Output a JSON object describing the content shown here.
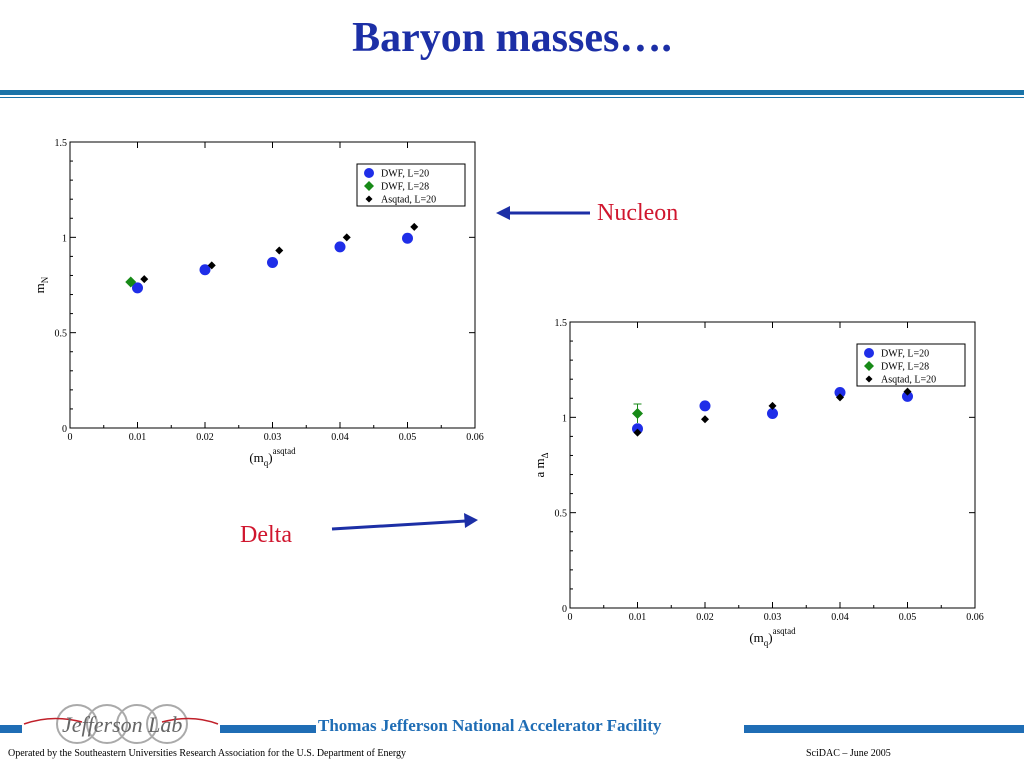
{
  "title": "Baryon masses….",
  "callouts": {
    "nucleon": "Nucleon",
    "delta": "Delta"
  },
  "footer": {
    "facility": "Thomas Jefferson National Accelerator Facility",
    "operated_by": "Operated by the Southeastern Universities Research Association for the U.S. Department of  Energy",
    "event": "SciDAC – June  2005",
    "logo_text": "Jefferson Lab"
  },
  "colors": {
    "title": "#1c2fa6",
    "callout": "#d0162e",
    "footer": "#1f6db5",
    "dwf20": "#1f2ee8",
    "dwf28": "#178a17",
    "asqtad": "#000000"
  },
  "chart_data": [
    {
      "type": "scatter",
      "title": "",
      "xlabel": "(m",
      "xlabel_sub": "q",
      "xlabel_tail": ")",
      "xlabel_sup": "asqtad",
      "ylabel": "m",
      "ylabel_sub": "N",
      "xlim": [
        0,
        0.06
      ],
      "ylim": [
        0,
        1.5
      ],
      "xticks": [
        "0",
        "0.01",
        "0.02",
        "0.03",
        "0.04",
        "0.05",
        "0.06"
      ],
      "yticks": [
        "0",
        "0.5",
        "1",
        "1.5"
      ],
      "legend": "top-right",
      "series": [
        {
          "name": "DWF, L=20",
          "marker": "circle",
          "x": [
            0.01,
            0.02,
            0.03,
            0.04,
            0.05
          ],
          "y": [
            0.735,
            0.83,
            0.868,
            0.95,
            0.995
          ]
        },
        {
          "name": "DWF, L=28",
          "marker": "diamond",
          "x": [
            0.009
          ],
          "y": [
            0.766
          ]
        },
        {
          "name": "Asqtad, L=20",
          "marker": "diamond-small",
          "x": [
            0.011,
            0.021,
            0.031,
            0.041,
            0.051
          ],
          "y": [
            0.781,
            0.853,
            0.931,
            1.0,
            1.055
          ]
        }
      ]
    },
    {
      "type": "scatter",
      "title": "",
      "xlabel": "(m",
      "xlabel_sub": "q",
      "xlabel_tail": ")",
      "xlabel_sup": "asqtad",
      "ylabel": "a m",
      "ylabel_sub": "Δ",
      "xlim": [
        0,
        0.06
      ],
      "ylim": [
        0,
        1.5
      ],
      "xticks": [
        "0",
        "0.01",
        "0.02",
        "0.03",
        "0.04",
        "0.05",
        "0.06"
      ],
      "yticks": [
        "0",
        "0.5",
        "1",
        "1.5"
      ],
      "legend": "top-right",
      "series": [
        {
          "name": "DWF, L=20",
          "marker": "circle",
          "x": [
            0.01,
            0.02,
            0.03,
            0.04,
            0.05
          ],
          "y": [
            0.94,
            1.06,
            1.02,
            1.13,
            1.11
          ]
        },
        {
          "name": "DWF, L=28",
          "marker": "diamond",
          "x": [
            0.01
          ],
          "y": [
            1.02
          ],
          "err": [
            0.05
          ]
        },
        {
          "name": "Asqtad, L=20",
          "marker": "diamond-small",
          "x": [
            0.01,
            0.02,
            0.03,
            0.04,
            0.05
          ],
          "y": [
            0.92,
            0.99,
            1.06,
            1.105,
            1.135
          ]
        }
      ]
    }
  ]
}
